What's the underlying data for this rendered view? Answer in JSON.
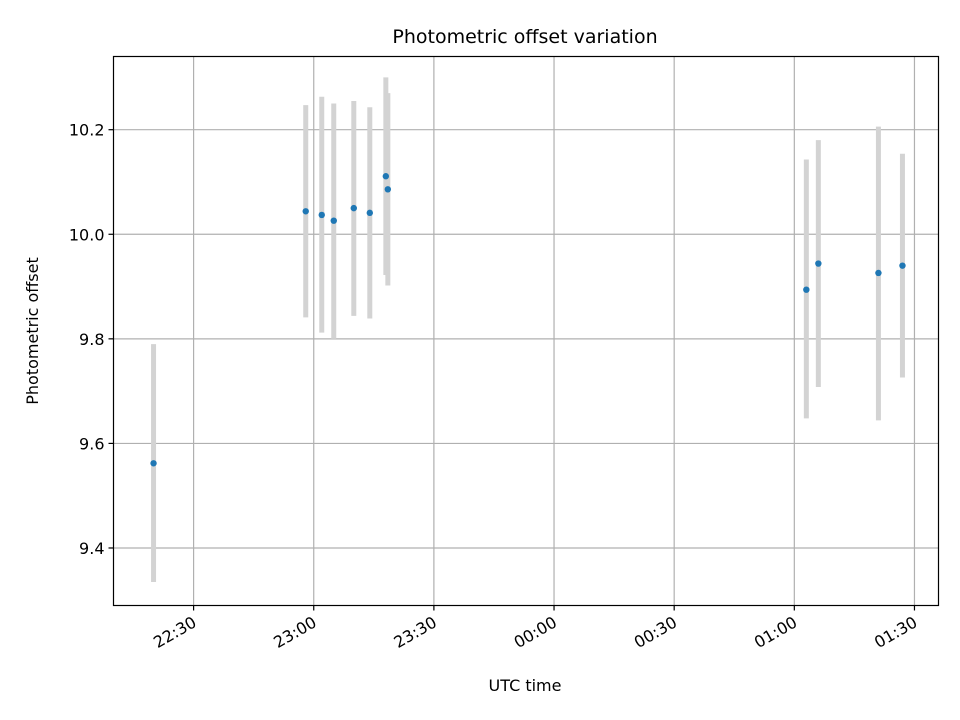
{
  "chart_data": {
    "type": "scatter",
    "title": "Photometric offset variation",
    "xlabel": "UTC time",
    "ylabel": "Photometric offset",
    "x_is_time": true,
    "x_tick_labels": [
      "22:30",
      "23:00",
      "23:30",
      "00:00",
      "00:30",
      "01:00",
      "01:30"
    ],
    "xlim": [
      "22:10",
      "01:36"
    ],
    "y_ticks": [
      9.4,
      9.6,
      9.8,
      10.0,
      10.2
    ],
    "y_tick_labels": [
      "9.4",
      "9.6",
      "9.8",
      "10.0",
      "10.2"
    ],
    "ylim": [
      9.29,
      10.34
    ],
    "grid": true,
    "series": [
      {
        "color": "#1f77b4",
        "errorbar_color": "#d3d3d3",
        "points": [
          {
            "x": "22:20",
            "y": 9.562,
            "lo": 9.335,
            "hi": 9.79
          },
          {
            "x": "22:58",
            "y": 10.044,
            "lo": 9.841,
            "hi": 10.247
          },
          {
            "x": "23:02",
            "y": 10.037,
            "lo": 9.812,
            "hi": 10.263
          },
          {
            "x": "23:05",
            "y": 10.026,
            "lo": 9.8,
            "hi": 10.25
          },
          {
            "x": "23:10",
            "y": 10.05,
            "lo": 9.844,
            "hi": 10.255
          },
          {
            "x": "23:14",
            "y": 10.041,
            "lo": 9.839,
            "hi": 10.243
          },
          {
            "x": "23:18",
            "y": 10.111,
            "lo": 9.922,
            "hi": 10.3
          },
          {
            "x": "23:18.5",
            "y": 10.086,
            "lo": 9.902,
            "hi": 10.27
          },
          {
            "x": "01:03",
            "y": 9.894,
            "lo": 9.648,
            "hi": 10.143
          },
          {
            "x": "01:06",
            "y": 9.944,
            "lo": 9.708,
            "hi": 10.18
          },
          {
            "x": "01:21",
            "y": 9.926,
            "lo": 9.644,
            "hi": 10.206
          },
          {
            "x": "01:27",
            "y": 9.94,
            "lo": 9.726,
            "hi": 10.154
          }
        ]
      }
    ]
  }
}
